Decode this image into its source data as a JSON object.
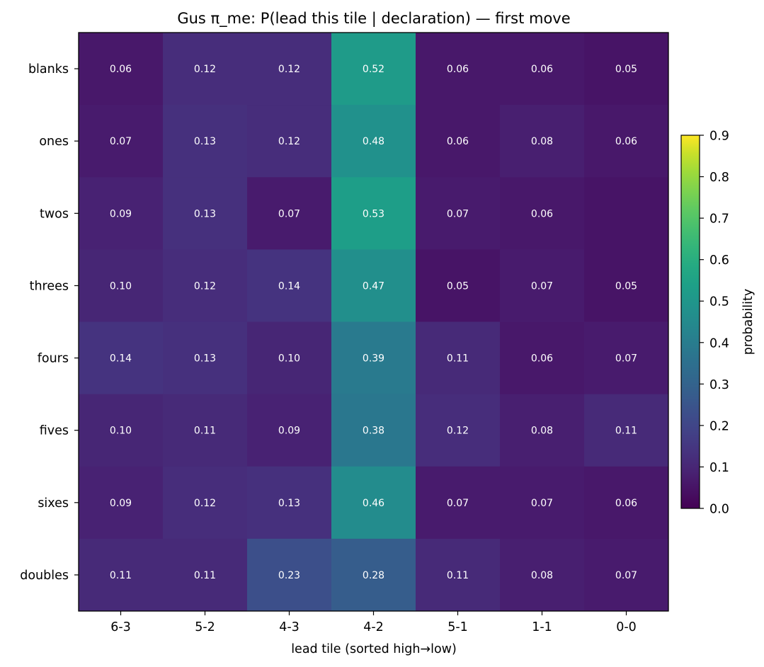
{
  "chart_data": {
    "type": "heatmap",
    "title": "Gus π_me: P(lead this tile | declaration) — first move",
    "xlabel": "lead tile (sorted high→low)",
    "ylabel": "",
    "x_categories": [
      "6-3",
      "5-2",
      "4-3",
      "4-2",
      "5-1",
      "1-1",
      "0-0"
    ],
    "y_categories": [
      "blanks",
      "ones",
      "twos",
      "threes",
      "fours",
      "fives",
      "sixes",
      "doubles"
    ],
    "values": [
      [
        0.06,
        0.12,
        0.12,
        0.52,
        0.06,
        0.06,
        0.05
      ],
      [
        0.07,
        0.13,
        0.12,
        0.48,
        0.06,
        0.08,
        0.06
      ],
      [
        0.09,
        0.13,
        0.07,
        0.53,
        0.07,
        0.06,
        null
      ],
      [
        0.1,
        0.12,
        0.14,
        0.47,
        0.05,
        0.07,
        0.05
      ],
      [
        0.14,
        0.13,
        0.1,
        0.39,
        0.11,
        0.06,
        0.07
      ],
      [
        0.1,
        0.11,
        0.09,
        0.38,
        0.12,
        0.08,
        0.11
      ],
      [
        0.09,
        0.12,
        0.13,
        0.46,
        0.07,
        0.07,
        0.06
      ],
      [
        0.11,
        0.11,
        0.23,
        0.28,
        0.11,
        0.08,
        0.07
      ]
    ],
    "cell_labels": [
      [
        "0.06",
        "0.12",
        "0.12",
        "0.52",
        "0.06",
        "0.06",
        "0.05"
      ],
      [
        "0.07",
        "0.13",
        "0.12",
        "0.48",
        "0.06",
        "0.08",
        "0.06"
      ],
      [
        "0.09",
        "0.13",
        "0.07",
        "0.53",
        "0.07",
        "0.06",
        ""
      ],
      [
        "0.10",
        "0.12",
        "0.14",
        "0.47",
        "0.05",
        "0.07",
        "0.05"
      ],
      [
        "0.14",
        "0.13",
        "0.10",
        "0.39",
        "0.11",
        "0.06",
        "0.07"
      ],
      [
        "0.10",
        "0.11",
        "0.09",
        "0.38",
        "0.12",
        "0.08",
        "0.11"
      ],
      [
        "0.09",
        "0.12",
        "0.13",
        "0.46",
        "0.07",
        "0.07",
        "0.06"
      ],
      [
        "0.11",
        "0.11",
        "0.23",
        "0.28",
        "0.11",
        "0.08",
        "0.07"
      ]
    ],
    "unlabeled_cell_color_value": 0.05,
    "colormap": "viridis",
    "colorbar": {
      "label": "probability",
      "range": [
        0.0,
        0.9
      ],
      "ticks": [
        "0.0",
        "0.1",
        "0.2",
        "0.3",
        "0.4",
        "0.5",
        "0.6",
        "0.7",
        "0.8",
        "0.9"
      ]
    },
    "grid": false
  }
}
